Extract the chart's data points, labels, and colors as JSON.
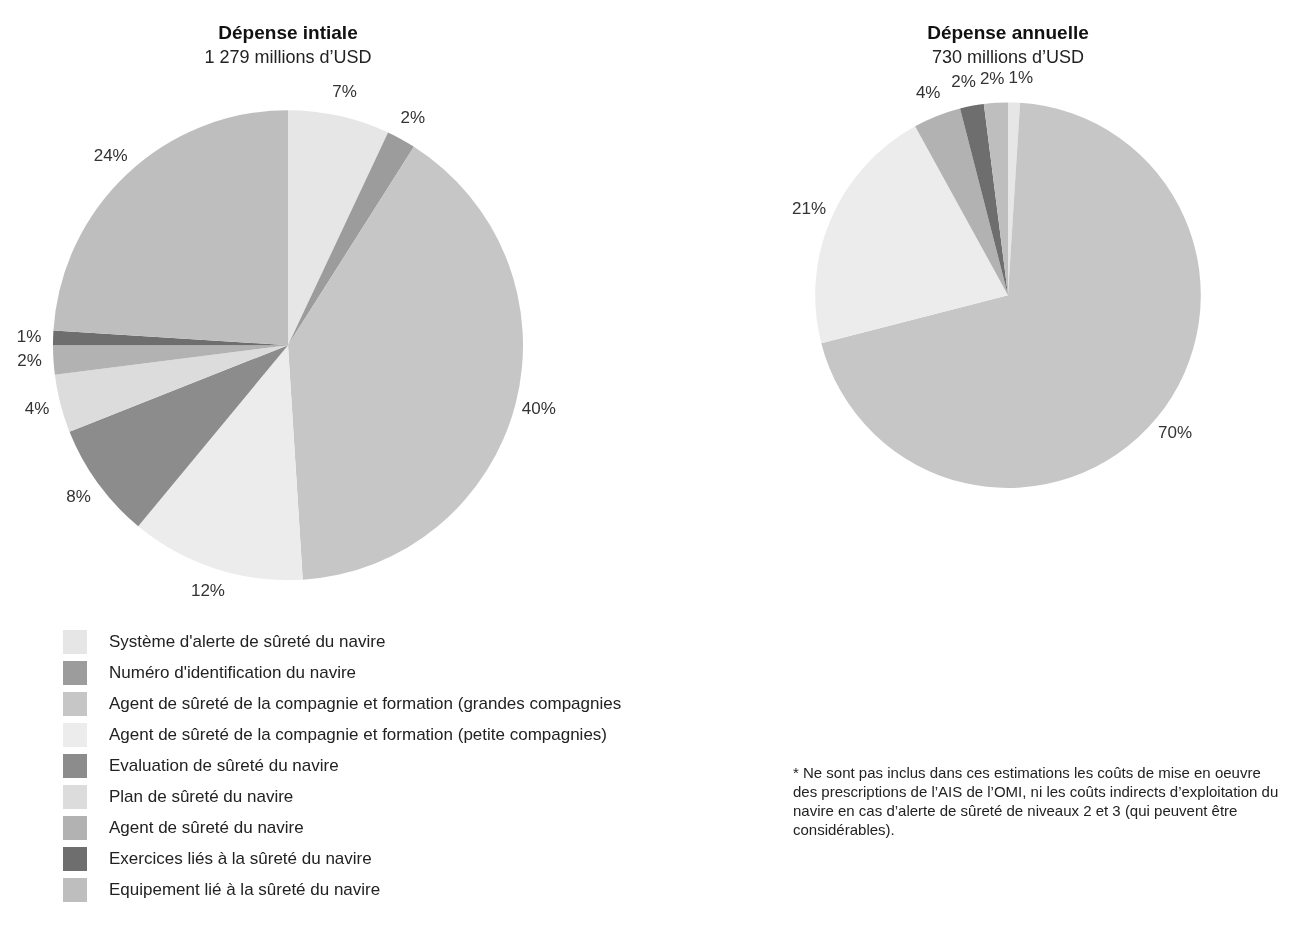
{
  "chart_data": [
    {
      "type": "pie",
      "title": "Dépense intiale",
      "subtitle": "1 279 millions d’USD",
      "legend": "bottom",
      "value_labels": [
        "7%",
        "2%",
        "40%",
        "12%",
        "8%",
        "4%",
        "2%",
        "1%",
        "24%"
      ],
      "categories": [
        "Système d'alerte de sûreté du navire",
        "Numéro d'identification du navire",
        "Agent de sûreté de la compagnie et formation (grandes compagnies",
        "Agent de sûreté de la compagnie et formation (petite compagnies)",
        "Evaluation de sûreté du navire",
        "Plan de sûreté du navire",
        "Agent de sûreté du navire",
        "Exercices liés à la sûreté du navire",
        "Equipement lié à la sûreté du navire"
      ],
      "values": [
        7,
        2,
        40,
        12,
        8,
        4,
        2,
        1,
        24
      ],
      "colors": [
        "#e6e6e6",
        "#9c9c9c",
        "#c6c6c6",
        "#ececec",
        "#8c8c8c",
        "#dcdcdc",
        "#b2b2b2",
        "#6e6e6e",
        "#bebebe"
      ]
    },
    {
      "type": "pie",
      "title": "Dépense annuelle",
      "subtitle": "730 millions d’USD",
      "value_labels": [
        "1%",
        "70%",
        "21%",
        "4%",
        "2%",
        "2%"
      ],
      "categories": [
        null,
        null,
        null,
        null,
        null,
        null
      ],
      "values": [
        1,
        70,
        21,
        4,
        2,
        2
      ],
      "colors": [
        "#e6e6e6",
        "#c6c6c6",
        "#ececec",
        "#b2b2b2",
        "#6e6e6e",
        "#bebebe"
      ],
      "annotations": [
        "* Ne sont pas inclus dans ces estimations les coûts de mise en oeuvre des prescriptions de l’AIS de l’OMI, ni les coûts indirects d’exploitation du navire en cas d’alerte de sûreté de niveaux 2 et 3 (qui peuvent être considérables)."
      ]
    }
  ]
}
